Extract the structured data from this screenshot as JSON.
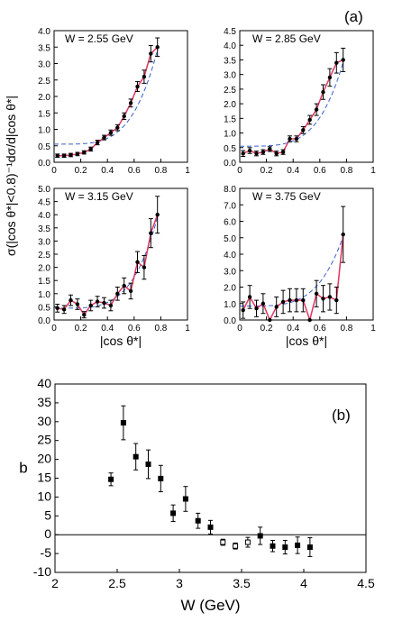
{
  "figure_label_a": "(a)",
  "figure_label_b": "(b)",
  "chart_data": [
    {
      "type": "scatter",
      "panel": "top-left",
      "annotation": "W = 2.55 GeV",
      "xlim": [
        0,
        1
      ],
      "ylim": [
        0,
        4.0
      ],
      "xticks": [
        "0",
        "0.2",
        "0.4",
        "0.6",
        "0.8",
        "1"
      ],
      "yticks": [
        "0.0",
        "0.5",
        "1.0",
        "1.5",
        "2.0",
        "2.5",
        "3.0",
        "3.5",
        "4.0"
      ],
      "xlabel": "",
      "ylabel": "σ(|cos θ*|<0.8)⁻¹dσ/d|cos θ*|",
      "points": [
        {
          "x": 0.025,
          "y": 0.2,
          "err": 0.05
        },
        {
          "x": 0.075,
          "y": 0.2,
          "err": 0.05
        },
        {
          "x": 0.125,
          "y": 0.22,
          "err": 0.05
        },
        {
          "x": 0.175,
          "y": 0.25,
          "err": 0.05
        },
        {
          "x": 0.225,
          "y": 0.3,
          "err": 0.05
        },
        {
          "x": 0.275,
          "y": 0.4,
          "err": 0.06
        },
        {
          "x": 0.325,
          "y": 0.6,
          "err": 0.07
        },
        {
          "x": 0.375,
          "y": 0.75,
          "err": 0.07
        },
        {
          "x": 0.425,
          "y": 0.9,
          "err": 0.08
        },
        {
          "x": 0.475,
          "y": 1.05,
          "err": 0.09
        },
        {
          "x": 0.525,
          "y": 1.4,
          "err": 0.1
        },
        {
          "x": 0.575,
          "y": 1.8,
          "err": 0.12
        },
        {
          "x": 0.625,
          "y": 2.3,
          "err": 0.15
        },
        {
          "x": 0.675,
          "y": 2.6,
          "err": 0.2
        },
        {
          "x": 0.725,
          "y": 3.3,
          "err": 0.25
        },
        {
          "x": 0.775,
          "y": 3.5,
          "err": 0.28
        }
      ]
    },
    {
      "type": "scatter",
      "panel": "top-right",
      "annotation": "W = 2.85 GeV",
      "xlim": [
        0,
        1
      ],
      "ylim": [
        0,
        4.5
      ],
      "xticks": [
        "0",
        "0.2",
        "0.4",
        "0.6",
        "0.8",
        "1"
      ],
      "yticks": [
        "0.0",
        "0.5",
        "1.0",
        "1.5",
        "2.0",
        "2.5",
        "3.0",
        "3.5",
        "4.0",
        "4.5"
      ],
      "xlabel": "",
      "ylabel": "",
      "points": [
        {
          "x": 0.025,
          "y": 0.3,
          "err": 0.1
        },
        {
          "x": 0.075,
          "y": 0.4,
          "err": 0.1
        },
        {
          "x": 0.125,
          "y": 0.3,
          "err": 0.08
        },
        {
          "x": 0.175,
          "y": 0.35,
          "err": 0.08
        },
        {
          "x": 0.225,
          "y": 0.45,
          "err": 0.08
        },
        {
          "x": 0.275,
          "y": 0.3,
          "err": 0.08
        },
        {
          "x": 0.325,
          "y": 0.35,
          "err": 0.08
        },
        {
          "x": 0.375,
          "y": 0.8,
          "err": 0.1
        },
        {
          "x": 0.425,
          "y": 0.8,
          "err": 0.1
        },
        {
          "x": 0.475,
          "y": 1.1,
          "err": 0.12
        },
        {
          "x": 0.525,
          "y": 1.45,
          "err": 0.15
        },
        {
          "x": 0.575,
          "y": 1.8,
          "err": 0.2
        },
        {
          "x": 0.625,
          "y": 2.4,
          "err": 0.25
        },
        {
          "x": 0.675,
          "y": 2.9,
          "err": 0.3
        },
        {
          "x": 0.725,
          "y": 3.4,
          "err": 0.35
        },
        {
          "x": 0.775,
          "y": 3.5,
          "err": 0.4
        }
      ]
    },
    {
      "type": "scatter",
      "panel": "bottom-left",
      "annotation": "W = 3.15 GeV",
      "xlim": [
        0,
        1
      ],
      "ylim": [
        0,
        5.0
      ],
      "xticks": [
        "0",
        "0.2",
        "0.4",
        "0.6",
        "0.8",
        "1"
      ],
      "yticks": [
        "0.0",
        "0.5",
        "1.0",
        "1.5",
        "2.0",
        "2.5",
        "3.0",
        "3.5",
        "4.0",
        "4.5",
        "5.0"
      ],
      "xlabel": "|cos θ*|",
      "ylabel": "",
      "points": [
        {
          "x": 0.025,
          "y": 0.45,
          "err": 0.15
        },
        {
          "x": 0.075,
          "y": 0.4,
          "err": 0.15
        },
        {
          "x": 0.125,
          "y": 0.75,
          "err": 0.2
        },
        {
          "x": 0.175,
          "y": 0.6,
          "err": 0.2
        },
        {
          "x": 0.225,
          "y": 0.2,
          "err": 0.12
        },
        {
          "x": 0.275,
          "y": 0.55,
          "err": 0.2
        },
        {
          "x": 0.325,
          "y": 0.7,
          "err": 0.2
        },
        {
          "x": 0.375,
          "y": 0.65,
          "err": 0.2
        },
        {
          "x": 0.425,
          "y": 0.55,
          "err": 0.2
        },
        {
          "x": 0.475,
          "y": 1.0,
          "err": 0.25
        },
        {
          "x": 0.525,
          "y": 1.3,
          "err": 0.3
        },
        {
          "x": 0.575,
          "y": 1.1,
          "err": 0.3
        },
        {
          "x": 0.625,
          "y": 2.2,
          "err": 0.4
        },
        {
          "x": 0.675,
          "y": 2.0,
          "err": 0.45
        },
        {
          "x": 0.725,
          "y": 3.3,
          "err": 0.55
        },
        {
          "x": 0.775,
          "y": 4.0,
          "err": 0.7
        }
      ]
    },
    {
      "type": "scatter",
      "panel": "bottom-right",
      "annotation": "W = 3.75 GeV",
      "xlim": [
        0,
        1
      ],
      "ylim": [
        0,
        8.0
      ],
      "xticks": [
        "0",
        "0.2",
        "0.4",
        "0.6",
        "0.8",
        "1"
      ],
      "yticks": [
        "0.0",
        "1.0",
        "2.0",
        "3.0",
        "4.0",
        "5.0",
        "6.0",
        "7.0",
        "8.0"
      ],
      "xlabel": "|cos θ*|",
      "ylabel": "",
      "points": [
        {
          "x": 0.025,
          "y": 0.6,
          "err": 0.5
        },
        {
          "x": 0.075,
          "y": 1.4,
          "err": 0.7
        },
        {
          "x": 0.125,
          "y": 0.7,
          "err": 0.5
        },
        {
          "x": 0.175,
          "y": 1.0,
          "err": 0.6
        },
        {
          "x": 0.225,
          "y": 0.0,
          "err": 0.0
        },
        {
          "x": 0.275,
          "y": 0.8,
          "err": 0.6
        },
        {
          "x": 0.325,
          "y": 1.1,
          "err": 0.7
        },
        {
          "x": 0.375,
          "y": 1.2,
          "err": 0.7
        },
        {
          "x": 0.425,
          "y": 1.2,
          "err": 0.7
        },
        {
          "x": 0.475,
          "y": 1.2,
          "err": 0.7
        },
        {
          "x": 0.525,
          "y": 0.0,
          "err": 0.0
        },
        {
          "x": 0.575,
          "y": 1.6,
          "err": 0.8
        },
        {
          "x": 0.625,
          "y": 1.3,
          "err": 0.8
        },
        {
          "x": 0.675,
          "y": 1.4,
          "err": 0.8
        },
        {
          "x": 0.725,
          "y": 1.2,
          "err": 0.8
        },
        {
          "x": 0.775,
          "y": 5.2,
          "err": 1.7
        }
      ]
    },
    {
      "type": "scatter",
      "panel": "bottom",
      "xlim": [
        2,
        4.5
      ],
      "ylim": [
        -10,
        40
      ],
      "xticks": [
        "2",
        "2.5",
        "3",
        "3.5",
        "4",
        "4.5"
      ],
      "yticks": [
        "-10",
        "-5",
        "0",
        "5",
        "10",
        "15",
        "20",
        "25",
        "30",
        "35",
        "40"
      ],
      "xlabel": "W (GeV)",
      "ylabel": "b",
      "points": [
        {
          "x": 2.45,
          "y": 14.7,
          "err": 1.7,
          "open": false
        },
        {
          "x": 2.55,
          "y": 29.7,
          "err": 4.5,
          "open": false
        },
        {
          "x": 2.65,
          "y": 20.7,
          "err": 3.5,
          "open": false
        },
        {
          "x": 2.75,
          "y": 18.7,
          "err": 3.8,
          "open": false
        },
        {
          "x": 2.85,
          "y": 14.9,
          "err": 3.5,
          "open": false
        },
        {
          "x": 2.95,
          "y": 5.7,
          "err": 2.2,
          "open": false
        },
        {
          "x": 3.05,
          "y": 9.5,
          "err": 3.3,
          "open": false
        },
        {
          "x": 3.15,
          "y": 3.7,
          "err": 2.0,
          "open": false
        },
        {
          "x": 3.25,
          "y": 2.0,
          "err": 1.8,
          "open": false
        },
        {
          "x": 3.35,
          "y": -2.0,
          "err": 0.8,
          "open": true
        },
        {
          "x": 3.45,
          "y": -3.0,
          "err": 0.8,
          "open": true
        },
        {
          "x": 3.55,
          "y": -2.0,
          "err": 1.3,
          "open": true
        },
        {
          "x": 3.65,
          "y": -0.3,
          "err": 2.3,
          "open": false
        },
        {
          "x": 3.75,
          "y": -3.0,
          "err": 1.5,
          "open": false
        },
        {
          "x": 3.85,
          "y": -3.3,
          "err": 1.8,
          "open": false
        },
        {
          "x": 3.95,
          "y": -2.8,
          "err": 2.2,
          "open": false
        },
        {
          "x": 4.05,
          "y": -3.3,
          "err": 2.5,
          "open": false
        }
      ]
    }
  ]
}
